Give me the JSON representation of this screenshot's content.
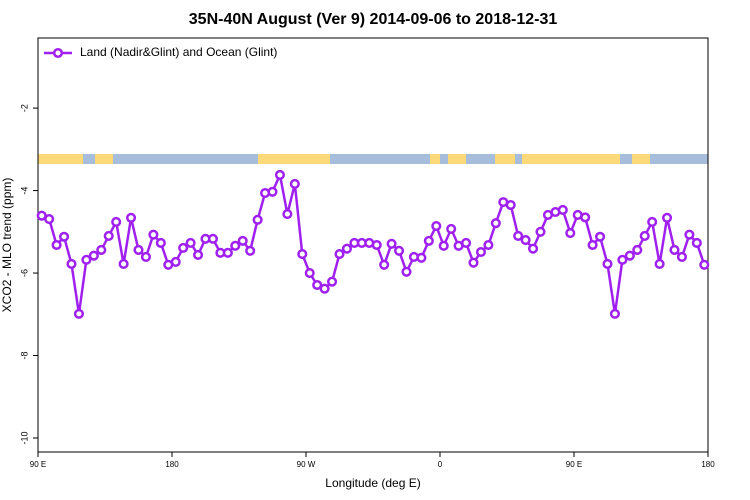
{
  "chart_data": {
    "type": "line",
    "title": "35N-40N August (Ver 9)   2014-09-06 to 2018-12-31",
    "xlabel": "Longitude (deg E)",
    "ylabel": "XCO2 - MLO trend (ppm)",
    "x": [
      92.5,
      97.5,
      102.5,
      107.5,
      112.5,
      117.5,
      122.5,
      127.5,
      132.5,
      137.5,
      142.5,
      147.5,
      152.5,
      157.5,
      162.5,
      167.5,
      172.5,
      177.5,
      182.5,
      187.5,
      192.5,
      197.5,
      202.5,
      207.5,
      212.5,
      217.5,
      222.5,
      227.5,
      232.5,
      237.5,
      242.5,
      247.5,
      252.5,
      257.5,
      262.5,
      267.5,
      272.5,
      277.5,
      282.5,
      287.5,
      292.5,
      297.5,
      302.5,
      307.5,
      312.5,
      317.5,
      322.5,
      327.5,
      332.5,
      337.5,
      342.5,
      347.5,
      352.5,
      357.5,
      362.5,
      367.5,
      372.5,
      377.5,
      382.5,
      387.5,
      392.5,
      397.5,
      402.5,
      407.5,
      412.5,
      417.5,
      422.5,
      427.5,
      432.5,
      437.5,
      442.5,
      447.5,
      452.5,
      457.5,
      462.5,
      467.5,
      472.5,
      477.5,
      482.5,
      487.5,
      492.5,
      497.5,
      502.5,
      507.5,
      512.5,
      517.5,
      522.5,
      527.5,
      532.5,
      537.5
    ],
    "series": [
      {
        "name": "Land (Nadir&Glint) and Ocean (Glint)",
        "color": "#a020f0",
        "values": [
          -4.61,
          -4.69,
          -5.32,
          -5.12,
          -5.78,
          -6.99,
          -5.68,
          -5.58,
          -5.44,
          -5.1,
          -4.76,
          -5.78,
          -4.66,
          -5.44,
          -5.61,
          -5.07,
          -5.27,
          -5.8,
          -5.73,
          -5.39,
          -5.27,
          -5.56,
          -5.17,
          -5.17,
          -5.51,
          -5.51,
          -5.34,
          -5.22,
          -5.46,
          -4.71,
          -4.06,
          -4.03,
          -3.62,
          -4.57,
          -3.84,
          -5.54,
          -6.0,
          -6.29,
          -6.38,
          -6.21,
          -5.54,
          -5.41,
          -5.27,
          -5.27,
          -5.27,
          -5.32,
          -5.8,
          -5.29,
          -5.46,
          -5.97,
          -5.61,
          -5.63,
          -5.22,
          -4.86,
          -5.34,
          -4.93,
          -5.34,
          -5.27,
          -5.75,
          -5.49,
          -5.32,
          -4.79,
          -4.28,
          -4.35,
          -5.1,
          -5.2,
          -5.41,
          -5.0,
          -4.59,
          -4.52,
          -4.47,
          -5.03,
          -4.59,
          -4.65,
          -5.32,
          -5.12,
          -5.78,
          -6.99,
          -5.68,
          -5.58,
          -5.44,
          -5.1,
          -4.76,
          -5.78,
          -4.66,
          -5.44,
          -5.61,
          -5.07,
          -5.27,
          -5.8
        ]
      }
    ],
    "xlim": [
      90,
      540
    ],
    "xticks": [
      {
        "value": 90,
        "label": "90 E"
      },
      {
        "value": 180,
        "label": "180"
      },
      {
        "value": 270,
        "label": "90 W"
      },
      {
        "value": 360,
        "label": "0"
      },
      {
        "value": 450,
        "label": "90 E"
      },
      {
        "value": 540,
        "label": "180"
      }
    ],
    "ylim": [
      -10.34,
      -0.3
    ],
    "yticks": [
      -2,
      -4,
      -6,
      -8,
      -10
    ],
    "legend": "top-left"
  }
}
